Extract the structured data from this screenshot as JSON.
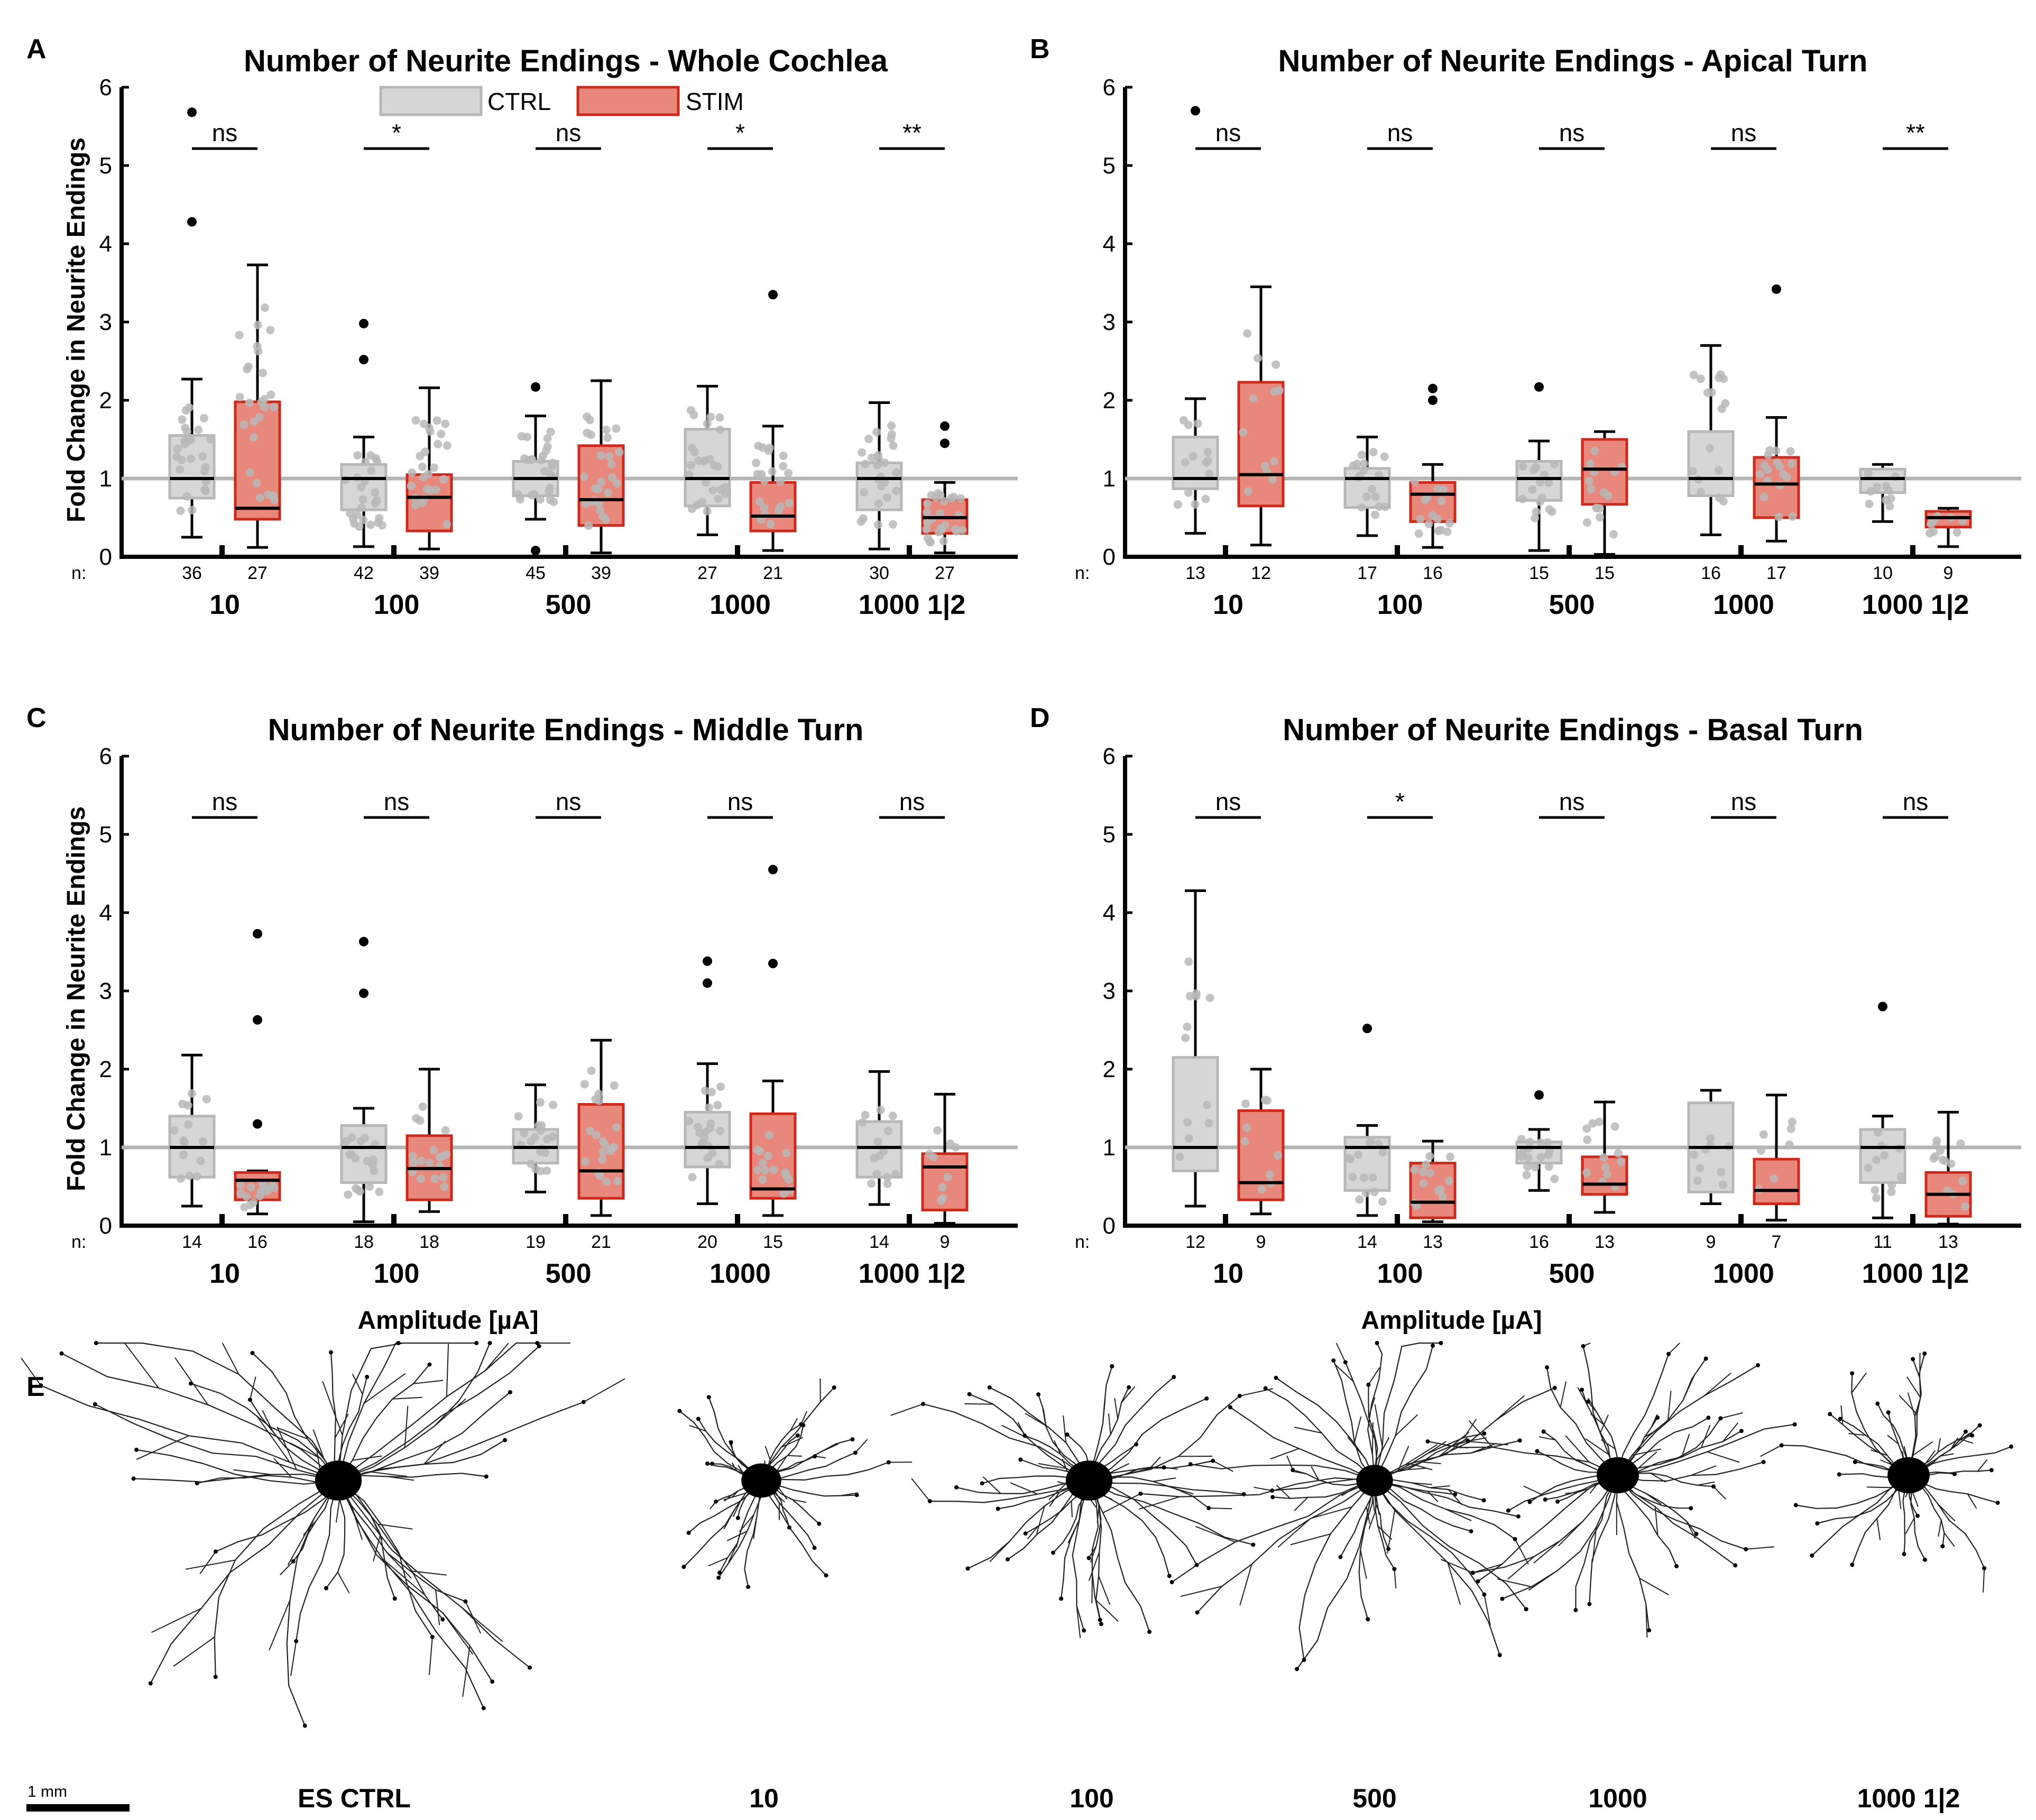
{
  "colors": {
    "ctrl_fill": "#d6d6d6",
    "ctrl_edge": "#b7b7b7",
    "stim_fill": "#e8877c",
    "stim_edge": "#cc2a1c",
    "dot": "#b9b9b9",
    "ref_line": "#b5b5b5"
  },
  "legend": {
    "ctrl": "CTRL",
    "stim": "STIM"
  },
  "common": {
    "n_label": "n:",
    "xlabel": "Amplitude [µA]",
    "ylabel": "Fold Change in Neurite Endings"
  },
  "chart_data": [
    {
      "panel": "A",
      "type": "box",
      "title": "Number of Neurite Endings - Whole Cochlea",
      "ylabel": "Fold Change in Neurite Endings",
      "xlabel": "",
      "ylim": [
        0,
        6
      ],
      "yticks": [
        0,
        1,
        2,
        3,
        4,
        5,
        6
      ],
      "reference_line": 1,
      "categories": [
        "10",
        "100",
        "500",
        "1000",
        "1000 1|2"
      ],
      "significance": [
        "ns",
        "*",
        "ns",
        "*",
        "**"
      ],
      "series": [
        {
          "name": "CTRL",
          "n": [
            36,
            42,
            45,
            27,
            30
          ],
          "boxes": [
            {
              "whislo": 0.25,
              "q1": 0.75,
              "med": 1.0,
              "q3": 1.55,
              "whishi": 2.27,
              "fliers": [
                4.28,
                5.68
              ]
            },
            {
              "whislo": 0.13,
              "q1": 0.6,
              "med": 1.0,
              "q3": 1.18,
              "whishi": 1.53,
              "fliers": [
                2.52,
                2.98
              ]
            },
            {
              "whislo": 0.48,
              "q1": 0.78,
              "med": 1.0,
              "q3": 1.22,
              "whishi": 1.8,
              "fliers": [
                0.08,
                2.17
              ]
            },
            {
              "whislo": 0.28,
              "q1": 0.65,
              "med": 1.0,
              "q3": 1.63,
              "whishi": 2.18,
              "fliers": []
            },
            {
              "whislo": 0.1,
              "q1": 0.6,
              "med": 1.0,
              "q3": 1.2,
              "whishi": 1.97,
              "fliers": []
            }
          ]
        },
        {
          "name": "STIM",
          "n": [
            27,
            39,
            39,
            21,
            27
          ],
          "boxes": [
            {
              "whislo": 0.12,
              "q1": 0.48,
              "med": 0.62,
              "q3": 1.98,
              "whishi": 3.73,
              "fliers": []
            },
            {
              "whislo": 0.1,
              "q1": 0.33,
              "med": 0.76,
              "q3": 1.05,
              "whishi": 2.16,
              "fliers": []
            },
            {
              "whislo": 0.05,
              "q1": 0.4,
              "med": 0.73,
              "q3": 1.42,
              "whishi": 2.25,
              "fliers": []
            },
            {
              "whislo": 0.08,
              "q1": 0.33,
              "med": 0.52,
              "q3": 0.95,
              "whishi": 1.67,
              "fliers": [
                3.35
              ]
            },
            {
              "whislo": 0.05,
              "q1": 0.3,
              "med": 0.5,
              "q3": 0.73,
              "whishi": 0.95,
              "fliers": [
                1.45,
                1.67
              ]
            }
          ]
        }
      ]
    },
    {
      "panel": "B",
      "type": "box",
      "title": "Number of Neurite Endings - Apical Turn",
      "ylabel": "",
      "xlabel": "",
      "ylim": [
        0,
        6
      ],
      "yticks": [
        0,
        1,
        2,
        3,
        4,
        5,
        6
      ],
      "reference_line": 1,
      "categories": [
        "10",
        "100",
        "500",
        "1000",
        "1000 1|2"
      ],
      "significance": [
        "ns",
        "ns",
        "ns",
        "ns",
        "**"
      ],
      "series": [
        {
          "name": "CTRL",
          "n": [
            13,
            17,
            15,
            16,
            10
          ],
          "boxes": [
            {
              "whislo": 0.3,
              "q1": 0.87,
              "med": 1.0,
              "q3": 1.53,
              "whishi": 2.02,
              "fliers": [
                5.7
              ]
            },
            {
              "whislo": 0.27,
              "q1": 0.63,
              "med": 1.0,
              "q3": 1.13,
              "whishi": 1.53,
              "fliers": []
            },
            {
              "whislo": 0.08,
              "q1": 0.72,
              "med": 1.0,
              "q3": 1.22,
              "whishi": 1.48,
              "fliers": [
                2.17
              ]
            },
            {
              "whislo": 0.28,
              "q1": 0.78,
              "med": 1.0,
              "q3": 1.6,
              "whishi": 2.7,
              "fliers": []
            },
            {
              "whislo": 0.45,
              "q1": 0.82,
              "med": 1.0,
              "q3": 1.12,
              "whishi": 1.18,
              "fliers": []
            }
          ]
        },
        {
          "name": "STIM",
          "n": [
            12,
            16,
            15,
            17,
            9
          ],
          "boxes": [
            {
              "whislo": 0.15,
              "q1": 0.65,
              "med": 1.05,
              "q3": 2.23,
              "whishi": 3.45,
              "fliers": []
            },
            {
              "whislo": 0.12,
              "q1": 0.45,
              "med": 0.8,
              "q3": 0.95,
              "whishi": 1.18,
              "fliers": [
                2.0,
                2.15
              ]
            },
            {
              "whislo": 0.03,
              "q1": 0.67,
              "med": 1.12,
              "q3": 1.5,
              "whishi": 1.6,
              "fliers": []
            },
            {
              "whislo": 0.2,
              "q1": 0.5,
              "med": 0.93,
              "q3": 1.27,
              "whishi": 1.78,
              "fliers": [
                3.42
              ]
            },
            {
              "whislo": 0.13,
              "q1": 0.38,
              "med": 0.5,
              "q3": 0.58,
              "whishi": 0.62,
              "fliers": []
            }
          ]
        }
      ]
    },
    {
      "panel": "C",
      "type": "box",
      "title": "Number of Neurite Endings - Middle Turn",
      "ylabel": "Fold Change in Neurite Endings",
      "xlabel": "Amplitude [µA]",
      "ylim": [
        0,
        6
      ],
      "yticks": [
        0,
        1,
        2,
        3,
        4,
        5,
        6
      ],
      "reference_line": 1,
      "categories": [
        "10",
        "100",
        "500",
        "1000",
        "1000 1|2"
      ],
      "significance": [
        "ns",
        "ns",
        "ns",
        "ns",
        "ns"
      ],
      "series": [
        {
          "name": "CTRL",
          "n": [
            14,
            18,
            19,
            20,
            14
          ],
          "boxes": [
            {
              "whislo": 0.25,
              "q1": 0.62,
              "med": 1.0,
              "q3": 1.4,
              "whishi": 2.18,
              "fliers": []
            },
            {
              "whislo": 0.05,
              "q1": 0.55,
              "med": 1.0,
              "q3": 1.28,
              "whishi": 1.5,
              "fliers": [
                2.97,
                3.63
              ]
            },
            {
              "whislo": 0.43,
              "q1": 0.8,
              "med": 1.0,
              "q3": 1.23,
              "whishi": 1.8,
              "fliers": []
            },
            {
              "whislo": 0.28,
              "q1": 0.75,
              "med": 1.0,
              "q3": 1.45,
              "whishi": 2.07,
              "fliers": [
                3.1,
                3.38
              ]
            },
            {
              "whislo": 0.27,
              "q1": 0.62,
              "med": 1.0,
              "q3": 1.33,
              "whishi": 1.97,
              "fliers": []
            }
          ]
        },
        {
          "name": "STIM",
          "n": [
            16,
            18,
            21,
            15,
            9
          ],
          "boxes": [
            {
              "whislo": 0.15,
              "q1": 0.33,
              "med": 0.58,
              "q3": 0.68,
              "whishi": 0.7,
              "fliers": [
                1.3,
                2.63,
                3.73
              ]
            },
            {
              "whislo": 0.18,
              "q1": 0.33,
              "med": 0.73,
              "q3": 1.15,
              "whishi": 2.0,
              "fliers": []
            },
            {
              "whislo": 0.13,
              "q1": 0.35,
              "med": 0.7,
              "q3": 1.55,
              "whishi": 2.37,
              "fliers": []
            },
            {
              "whislo": 0.13,
              "q1": 0.35,
              "med": 0.47,
              "q3": 1.43,
              "whishi": 1.85,
              "fliers": [
                3.35,
                4.55
              ]
            },
            {
              "whislo": 0.03,
              "q1": 0.2,
              "med": 0.75,
              "q3": 0.92,
              "whishi": 1.68,
              "fliers": []
            }
          ]
        }
      ]
    },
    {
      "panel": "D",
      "type": "box",
      "title": "Number of Neurite Endings - Basal Turn",
      "ylabel": "",
      "xlabel": "Amplitude [µA]",
      "ylim": [
        0,
        6
      ],
      "yticks": [
        0,
        1,
        2,
        3,
        4,
        5,
        6
      ],
      "reference_line": 1,
      "categories": [
        "10",
        "100",
        "500",
        "1000",
        "1000 1|2"
      ],
      "significance": [
        "ns",
        "*",
        "ns",
        "ns",
        "ns"
      ],
      "series": [
        {
          "name": "CTRL",
          "n": [
            12,
            14,
            16,
            9,
            11
          ],
          "boxes": [
            {
              "whislo": 0.25,
              "q1": 0.7,
              "med": 1.0,
              "q3": 2.15,
              "whishi": 4.28,
              "fliers": []
            },
            {
              "whislo": 0.13,
              "q1": 0.45,
              "med": 1.0,
              "q3": 1.13,
              "whishi": 1.28,
              "fliers": [
                2.52
              ]
            },
            {
              "whislo": 0.45,
              "q1": 0.8,
              "med": 1.0,
              "q3": 1.07,
              "whishi": 1.23,
              "fliers": [
                1.67
              ]
            },
            {
              "whislo": 0.28,
              "q1": 0.43,
              "med": 1.0,
              "q3": 1.57,
              "whishi": 1.73,
              "fliers": []
            },
            {
              "whislo": 0.1,
              "q1": 0.55,
              "med": 1.0,
              "q3": 1.23,
              "whishi": 1.4,
              "fliers": [
                2.8
              ]
            }
          ]
        },
        {
          "name": "STIM",
          "n": [
            9,
            13,
            13,
            7,
            13
          ],
          "boxes": [
            {
              "whislo": 0.15,
              "q1": 0.33,
              "med": 0.55,
              "q3": 1.47,
              "whishi": 2.0,
              "fliers": []
            },
            {
              "whislo": 0.05,
              "q1": 0.1,
              "med": 0.3,
              "q3": 0.8,
              "whishi": 1.08,
              "fliers": []
            },
            {
              "whislo": 0.17,
              "q1": 0.4,
              "med": 0.53,
              "q3": 0.88,
              "whishi": 1.58,
              "fliers": []
            },
            {
              "whislo": 0.07,
              "q1": 0.28,
              "med": 0.45,
              "q3": 0.85,
              "whishi": 1.67,
              "fliers": []
            },
            {
              "whislo": 0.02,
              "q1": 0.12,
              "med": 0.4,
              "q3": 0.68,
              "whishi": 1.45,
              "fliers": []
            }
          ]
        }
      ]
    }
  ],
  "neurons": {
    "panel": "E",
    "labels": [
      "ES CTRL",
      "10",
      "100",
      "500",
      "1000",
      "1000 1|2"
    ],
    "scale_bar": "1 mm"
  }
}
